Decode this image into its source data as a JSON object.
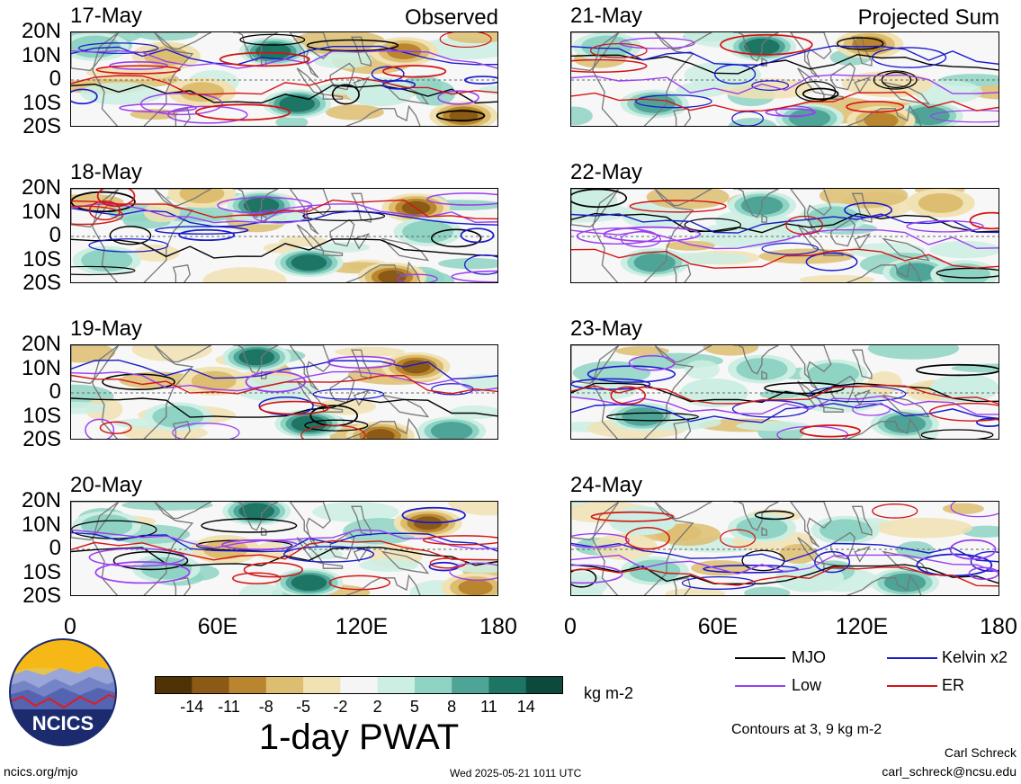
{
  "panels_left": [
    {
      "date": "17-May",
      "right_label": "Observed"
    },
    {
      "date": "18-May",
      "right_label": ""
    },
    {
      "date": "19-May",
      "right_label": ""
    },
    {
      "date": "20-May",
      "right_label": ""
    }
  ],
  "panels_right": [
    {
      "date": "21-May",
      "right_label": "Projected Sum"
    },
    {
      "date": "22-May",
      "right_label": ""
    },
    {
      "date": "23-May",
      "right_label": ""
    },
    {
      "date": "24-May",
      "right_label": ""
    }
  ],
  "lat_ticks": [
    "20N",
    "10N",
    "0",
    "10S",
    "20S"
  ],
  "lon_ticks": [
    "0",
    "60E",
    "120E",
    "180"
  ],
  "colorbar": {
    "labels": [
      "-14",
      "-11",
      "-8",
      "-5",
      "-2",
      "2",
      "5",
      "8",
      "11",
      "14"
    ],
    "colors": [
      "#4f3306",
      "#8a5a16",
      "#b9862f",
      "#ddbd70",
      "#f1e2b3",
      "#f5f5f5",
      "#cdeee3",
      "#8ed3c3",
      "#4ea597",
      "#1d7564",
      "#0d4a3d"
    ],
    "units": "kg m-2",
    "title": "1-day PWAT"
  },
  "legend": {
    "items": [
      {
        "label": "MJO",
        "color": "#000000"
      },
      {
        "label": "Kelvin x2",
        "color": "#1a1acc"
      },
      {
        "label": "Low",
        "color": "#9b3ef0"
      },
      {
        "label": "ER",
        "color": "#d41414"
      }
    ],
    "contours_note": "Contours at 3, 9 kg m-2"
  },
  "logo": {
    "text": "NCICS"
  },
  "footer": {
    "left": "ncics.org/mjo",
    "center": "Wed 2025-05-21 1011 UTC",
    "author": "Carl Schreck",
    "email": "carl_schreck@ncsu.edu"
  },
  "chart_data": {
    "type": "heatmap",
    "title": "1-day PWAT",
    "xlabel": "",
    "ylabel": "",
    "x_range": [
      0,
      180
    ],
    "y_range": [
      -20,
      20
    ],
    "x_ticks": [
      "0",
      "60E",
      "120E",
      "180"
    ],
    "y_ticks": [
      "20N",
      "10N",
      "0",
      "10S",
      "20S"
    ],
    "units": "kg m-2",
    "color_levels": [
      -14,
      -11,
      -8,
      -5,
      -2,
      2,
      5,
      8,
      11,
      14
    ],
    "contour_levels": [
      3,
      9
    ],
    "contour_series": [
      "MJO",
      "Kelvin x2",
      "Low",
      "ER"
    ],
    "panels": [
      {
        "date": "17-May",
        "label": "Observed",
        "anomalies": [
          {
            "lon": 85,
            "lat": 12,
            "value": 14
          },
          {
            "lon": 95,
            "lat": -10,
            "value": 14
          },
          {
            "lon": 10,
            "lat": 14,
            "value": 8
          },
          {
            "lon": 140,
            "lat": 12,
            "value": -8
          },
          {
            "lon": 165,
            "lat": -15,
            "value": -11
          },
          {
            "lon": 40,
            "lat": 10,
            "value": -5
          },
          {
            "lon": 55,
            "lat": -5,
            "value": -5
          },
          {
            "lon": 130,
            "lat": -5,
            "value": 5
          }
        ]
      },
      {
        "date": "18-May",
        "label": "",
        "anomalies": [
          {
            "lon": 80,
            "lat": 13,
            "value": 14
          },
          {
            "lon": 100,
            "lat": -11,
            "value": 14
          },
          {
            "lon": 145,
            "lat": 12,
            "value": -11
          },
          {
            "lon": 135,
            "lat": -17,
            "value": -11
          },
          {
            "lon": 150,
            "lat": 2,
            "value": 8
          },
          {
            "lon": 15,
            "lat": -10,
            "value": 8
          },
          {
            "lon": 55,
            "lat": 18,
            "value": -5
          }
        ]
      },
      {
        "date": "19-May",
        "label": "",
        "anomalies": [
          {
            "lon": 78,
            "lat": 15,
            "value": 14
          },
          {
            "lon": 100,
            "lat": -13,
            "value": 14
          },
          {
            "lon": 145,
            "lat": 11,
            "value": -11
          },
          {
            "lon": 130,
            "lat": -18,
            "value": -11
          },
          {
            "lon": 160,
            "lat": -16,
            "value": 11
          },
          {
            "lon": 45,
            "lat": -10,
            "value": 8
          },
          {
            "lon": 60,
            "lat": 5,
            "value": -5
          }
        ]
      },
      {
        "date": "20-May",
        "label": "",
        "anomalies": [
          {
            "lon": 78,
            "lat": 16,
            "value": 14
          },
          {
            "lon": 100,
            "lat": -14,
            "value": 14
          },
          {
            "lon": 150,
            "lat": 11,
            "value": -11
          },
          {
            "lon": 40,
            "lat": -8,
            "value": 8
          },
          {
            "lon": 15,
            "lat": 10,
            "value": 8
          },
          {
            "lon": 65,
            "lat": 0,
            "value": -5
          },
          {
            "lon": 170,
            "lat": -16,
            "value": -8
          }
        ]
      },
      {
        "date": "21-May",
        "label": "Projected Sum",
        "anomalies": [
          {
            "lon": 80,
            "lat": 14,
            "value": 14
          },
          {
            "lon": 35,
            "lat": -10,
            "value": 11
          },
          {
            "lon": 100,
            "lat": -16,
            "value": 11
          },
          {
            "lon": 150,
            "lat": -15,
            "value": 11
          },
          {
            "lon": 125,
            "lat": 15,
            "value": -8
          },
          {
            "lon": 130,
            "lat": -17,
            "value": -8
          },
          {
            "lon": 15,
            "lat": 14,
            "value": 8
          }
        ]
      },
      {
        "date": "22-May",
        "label": "",
        "anomalies": [
          {
            "lon": 80,
            "lat": 13,
            "value": 11
          },
          {
            "lon": 35,
            "lat": -11,
            "value": 11
          },
          {
            "lon": 145,
            "lat": -15,
            "value": 11
          },
          {
            "lon": 165,
            "lat": -16,
            "value": 8
          },
          {
            "lon": 110,
            "lat": 8,
            "value": 8
          },
          {
            "lon": 155,
            "lat": 14,
            "value": -5
          },
          {
            "lon": 5,
            "lat": 15,
            "value": 5
          }
        ]
      },
      {
        "date": "23-May",
        "label": "",
        "anomalies": [
          {
            "lon": 30,
            "lat": -10,
            "value": 11
          },
          {
            "lon": 140,
            "lat": -13,
            "value": 11
          },
          {
            "lon": 80,
            "lat": 10,
            "value": 8
          },
          {
            "lon": 110,
            "lat": 8,
            "value": 8
          },
          {
            "lon": 60,
            "lat": 0,
            "value": 5
          },
          {
            "lon": 165,
            "lat": 2,
            "value": 5
          }
        ]
      },
      {
        "date": "24-May",
        "label": "",
        "anomalies": [
          {
            "lon": 140,
            "lat": -14,
            "value": 11
          },
          {
            "lon": 80,
            "lat": 9,
            "value": 8
          },
          {
            "lon": 35,
            "lat": -9,
            "value": 8
          },
          {
            "lon": 115,
            "lat": 8,
            "value": 8
          },
          {
            "lon": 100,
            "lat": -12,
            "value": 5
          },
          {
            "lon": 30,
            "lat": 12,
            "value": 5
          }
        ]
      }
    ]
  }
}
